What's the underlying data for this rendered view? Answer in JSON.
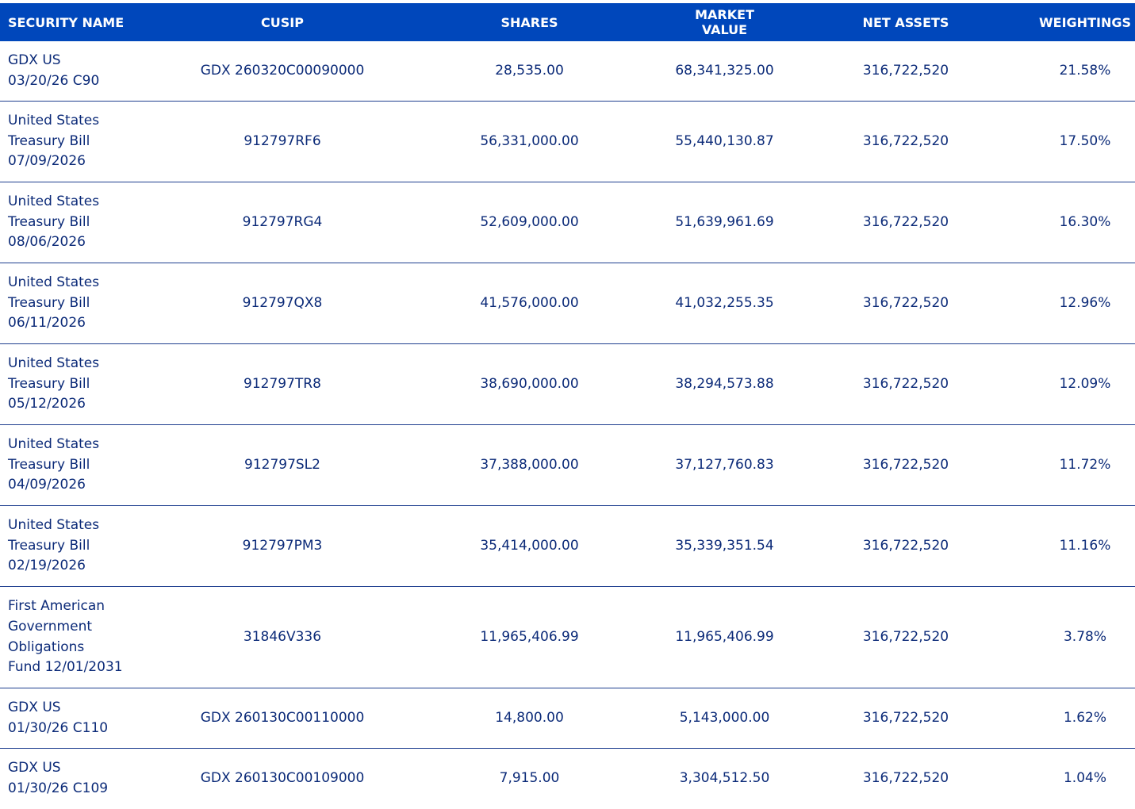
{
  "colors": {
    "header_bg": "#0047bb",
    "header_text": "#ffffff",
    "body_text": "#0b2a78",
    "divider": "#1f3f8f"
  },
  "headers": {
    "security_name": "SECURITY NAME",
    "cusip": "CUSIP",
    "shares": "SHARES",
    "market_value": "MARKET VALUE",
    "net_assets": "NET ASSETS",
    "weightings": "WEIGHTINGS"
  },
  "rows": [
    {
      "name_lines": [
        "GDX US",
        "03/20/26 C90"
      ],
      "cusip": "GDX 260320C00090000",
      "shares": "28,535.00",
      "market_value": "68,341,325.00",
      "net_assets": "316,722,520",
      "weighting": "21.58%"
    },
    {
      "name_lines": [
        "United States",
        "Treasury Bill",
        "07/09/2026"
      ],
      "cusip": "912797RF6",
      "shares": "56,331,000.00",
      "market_value": "55,440,130.87",
      "net_assets": "316,722,520",
      "weighting": "17.50%"
    },
    {
      "name_lines": [
        "United States",
        "Treasury Bill",
        "08/06/2026"
      ],
      "cusip": "912797RG4",
      "shares": "52,609,000.00",
      "market_value": "51,639,961.69",
      "net_assets": "316,722,520",
      "weighting": "16.30%"
    },
    {
      "name_lines": [
        "United States",
        "Treasury Bill",
        "06/11/2026"
      ],
      "cusip": "912797QX8",
      "shares": "41,576,000.00",
      "market_value": "41,032,255.35",
      "net_assets": "316,722,520",
      "weighting": "12.96%"
    },
    {
      "name_lines": [
        "United States",
        "Treasury Bill",
        "05/12/2026"
      ],
      "cusip": "912797TR8",
      "shares": "38,690,000.00",
      "market_value": "38,294,573.88",
      "net_assets": "316,722,520",
      "weighting": "12.09%"
    },
    {
      "name_lines": [
        "United States",
        "Treasury Bill",
        "04/09/2026"
      ],
      "cusip": "912797SL2",
      "shares": "37,388,000.00",
      "market_value": "37,127,760.83",
      "net_assets": "316,722,520",
      "weighting": "11.72%"
    },
    {
      "name_lines": [
        "United States",
        "Treasury Bill",
        "02/19/2026"
      ],
      "cusip": "912797PM3",
      "shares": "35,414,000.00",
      "market_value": "35,339,351.54",
      "net_assets": "316,722,520",
      "weighting": "11.16%"
    },
    {
      "name_lines": [
        "First American",
        "Government",
        "Obligations",
        "Fund 12/01/2031"
      ],
      "cusip": "31846V336",
      "shares": "11,965,406.99",
      "market_value": "11,965,406.99",
      "net_assets": "316,722,520",
      "weighting": "3.78%"
    },
    {
      "name_lines": [
        "GDX US",
        "01/30/26 C110"
      ],
      "cusip": "GDX 260130C00110000",
      "shares": "14,800.00",
      "market_value": "5,143,000.00",
      "net_assets": "316,722,520",
      "weighting": "1.62%"
    },
    {
      "name_lines": [
        "GDX US",
        "01/30/26 C109"
      ],
      "cusip": "GDX 260130C00109000",
      "shares": "7,915.00",
      "market_value": "3,304,512.50",
      "net_assets": "316,722,520",
      "weighting": "1.04%"
    }
  ]
}
